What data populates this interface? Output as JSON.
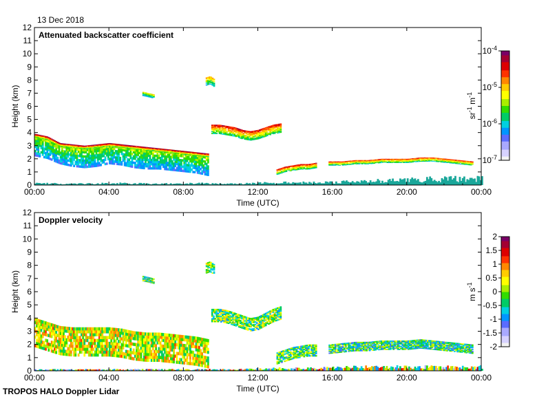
{
  "date_label": "13 Dec 2018",
  "footer_label": "TROPOS HALO Doppler Lidar",
  "colors": {
    "background": "#ffffff",
    "axis": "#000000",
    "surface_band": "#1aa79a",
    "rainbow": [
      "#f2f2f2",
      "#d7d2ff",
      "#a9a9ff",
      "#5a6cff",
      "#0096ff",
      "#00d0e0",
      "#00cc66",
      "#33dd00",
      "#aaee00",
      "#ffff00",
      "#ffcc00",
      "#ff8800",
      "#ff3300",
      "#dd0000",
      "#a30033",
      "#7a0066"
    ]
  },
  "chart_data": [
    {
      "type": "heatmap",
      "id": "backscatter",
      "title": "Attenuated backscatter coefficient",
      "xlabel": "Time (UTC)",
      "ylabel": "Height (km)",
      "xlim": [
        0,
        24
      ],
      "ylim": [
        0,
        12
      ],
      "x_ticks": [
        "00:00",
        "04:00",
        "08:00",
        "12:00",
        "16:00",
        "20:00",
        "00:00"
      ],
      "y_ticks": [
        "0",
        "1",
        "2",
        "3",
        "4",
        "5",
        "6",
        "7",
        "8",
        "9",
        "10",
        "11",
        "12"
      ],
      "colorbar": {
        "label": "sr-1 m-1",
        "label_parts": [
          "sr",
          "-1",
          " m",
          "-1"
        ],
        "scale": "log",
        "range": [
          1e-07,
          0.0001
        ],
        "ticks": [
          {
            "value": 1e-07,
            "base": "10",
            "exp": "-7"
          },
          {
            "value": 1e-06,
            "base": "10",
            "exp": "-6"
          },
          {
            "value": 1e-05,
            "base": "10",
            "exp": "-5"
          },
          {
            "value": 0.0001,
            "base": "10",
            "exp": "-4"
          }
        ]
      },
      "layers": [
        {
          "name": "boundary-layer-aerosol",
          "t_start": 0,
          "t_end": 9.3,
          "top_km": [
            3.8,
            3.6,
            3.2,
            3.0,
            2.9,
            3.0,
            3.2,
            3.1,
            2.9,
            2.8,
            2.8,
            2.7,
            2.6,
            2.5,
            2.3
          ],
          "thickness_km": 1.6,
          "intensity": 0.55
        },
        {
          "name": "ablc-top-edge",
          "t_start": 0,
          "t_end": 9.3,
          "top_km": [
            3.9,
            3.7,
            3.2,
            3.1,
            3.0,
            3.1,
            3.2,
            3.1,
            3.0,
            2.9,
            2.8,
            2.7,
            2.6,
            2.5,
            2.4
          ],
          "thickness_km": 0.25,
          "intensity": 0.95
        },
        {
          "name": "cloud-layer-midday",
          "t_start": 9.5,
          "t_end": 13.2,
          "top_km": [
            4.6,
            4.6,
            4.5,
            4.4,
            4.2,
            4.1,
            4.2,
            4.4,
            4.6,
            4.7
          ],
          "thickness_km": 0.7,
          "intensity": 0.85
        },
        {
          "name": "cloud-layer-afternoon",
          "t_start": 13.0,
          "t_end": 15.1,
          "top_km": [
            1.2,
            1.4,
            1.5,
            1.6,
            1.6,
            1.7
          ],
          "thickness_km": 0.4,
          "intensity": 0.85
        },
        {
          "name": "cloud-layer-evening",
          "t_start": 15.8,
          "t_end": 23.5,
          "top_km": [
            1.8,
            1.8,
            1.9,
            1.9,
            2.0,
            2.0,
            2.0,
            2.1,
            2.1,
            2.0,
            1.9,
            1.8
          ],
          "thickness_km": 0.3,
          "intensity": 0.8
        },
        {
          "name": "cirrus-8km",
          "t_start": 9.2,
          "t_end": 9.6,
          "top_km": [
            8.2,
            8.3,
            8.1
          ],
          "thickness_km": 0.6,
          "intensity": 0.7
        },
        {
          "name": "cirrus-7km",
          "t_start": 5.8,
          "t_end": 6.4,
          "top_km": [
            7.1,
            7.0,
            6.9
          ],
          "thickness_km": 0.3,
          "intensity": 0.6
        },
        {
          "name": "surface-band",
          "t_start": 0,
          "t_end": 24,
          "top_km": [
            0.15,
            0.1,
            0.15,
            0.1,
            0.15,
            0.1,
            0.2,
            0.2,
            0.3,
            0.4,
            0.5,
            0.5
          ],
          "thickness_km": 0.3,
          "intensity": 0.3
        }
      ]
    },
    {
      "type": "heatmap",
      "id": "doppler",
      "title": "Doppler velocity",
      "xlabel": "Time (UTC)",
      "ylabel": "Height (km)",
      "xlim": [
        0,
        24
      ],
      "ylim": [
        0,
        12
      ],
      "x_ticks": [
        "00:00",
        "04:00",
        "08:00",
        "12:00",
        "16:00",
        "20:00",
        "00:00"
      ],
      "y_ticks": [
        "0",
        "1",
        "2",
        "3",
        "4",
        "5",
        "6",
        "7",
        "8",
        "9",
        "10",
        "11",
        "12"
      ],
      "colorbar": {
        "label": "m s-1",
        "label_parts": [
          "m s",
          "-1"
        ],
        "scale": "linear",
        "range": [
          -2,
          2
        ],
        "ticks": [
          {
            "value": 2,
            "label": "2"
          },
          {
            "value": 1.5,
            "label": "1.5"
          },
          {
            "value": 1,
            "label": "1"
          },
          {
            "value": 0.5,
            "label": "0.5"
          },
          {
            "value": 0,
            "label": "0"
          },
          {
            "value": -0.5,
            "label": "-0.5"
          },
          {
            "value": -1,
            "label": "-1"
          },
          {
            "value": -1.5,
            "label": "-1.5"
          },
          {
            "value": -2,
            "label": "-2"
          }
        ]
      },
      "layers": [
        {
          "name": "boundary-layer-updrafts",
          "t_start": 0,
          "t_end": 9.3,
          "top_km": [
            4.0,
            3.7,
            3.4,
            3.3,
            3.3,
            3.3,
            3.3,
            3.2,
            3.0,
            2.9,
            2.9,
            2.8,
            2.7,
            2.6,
            2.4
          ],
          "thickness_km": 2.2,
          "velocity": 0.3
        },
        {
          "name": "cloud-layer-midday",
          "t_start": 9.5,
          "t_end": 13.2,
          "top_km": [
            4.7,
            4.7,
            4.6,
            4.4,
            4.2,
            4.0,
            4.1,
            4.4,
            4.7,
            4.9
          ],
          "thickness_km": 1.0,
          "velocity": -0.1
        },
        {
          "name": "cloud-layer-afternoon",
          "t_start": 13.0,
          "t_end": 15.1,
          "top_km": [
            1.4,
            1.6,
            1.8,
            1.9,
            2.0,
            2.0
          ],
          "thickness_km": 0.9,
          "velocity": -0.3
        },
        {
          "name": "cloud-layer-evening",
          "t_start": 15.8,
          "t_end": 23.5,
          "top_km": [
            2.0,
            2.1,
            2.2,
            2.2,
            2.3,
            2.3,
            2.3,
            2.4,
            2.3,
            2.2,
            2.1,
            2.0
          ],
          "thickness_km": 0.7,
          "velocity": -0.4
        },
        {
          "name": "cirrus-8km",
          "t_start": 9.2,
          "t_end": 9.6,
          "top_km": [
            8.2,
            8.3,
            8.1
          ],
          "thickness_km": 0.8,
          "velocity": 0.0
        },
        {
          "name": "cirrus-7km",
          "t_start": 5.8,
          "t_end": 6.4,
          "top_km": [
            7.2,
            7.1,
            7.0
          ],
          "thickness_km": 0.4,
          "velocity": -0.2
        },
        {
          "name": "surface-band",
          "t_start": 0,
          "t_end": 24,
          "top_km": [
            0.1,
            0.1,
            0.1,
            0.1,
            0.1,
            0.1,
            0.2,
            0.2,
            0.3,
            0.3,
            0.3,
            0.3
          ],
          "thickness_km": 0.2,
          "velocity": 0.8
        }
      ]
    }
  ]
}
